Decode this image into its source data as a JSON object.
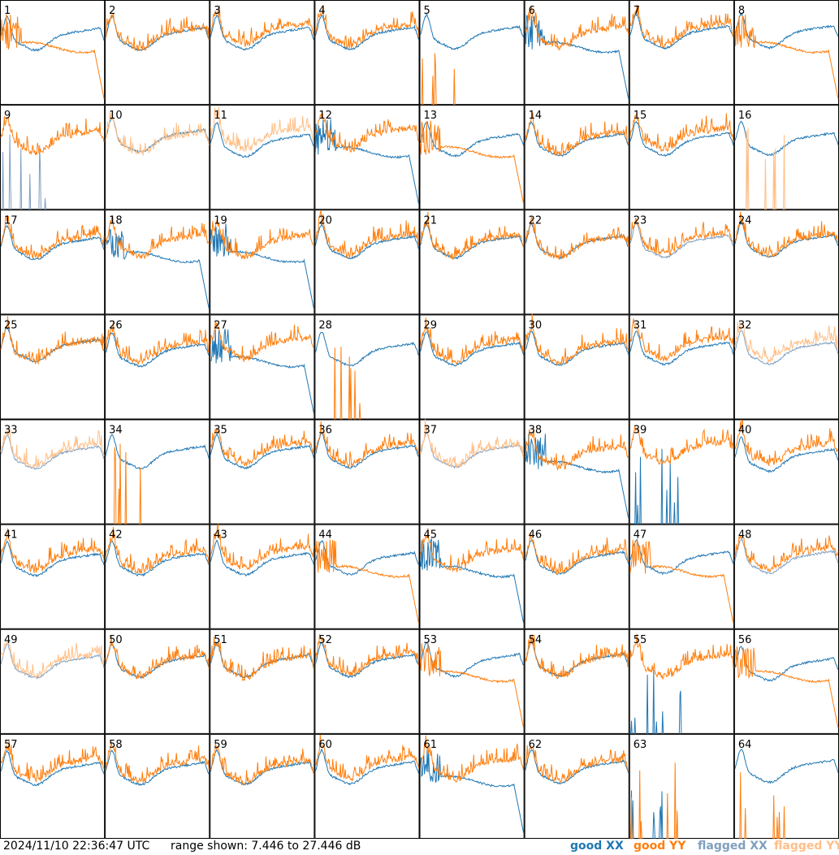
{
  "chart_data": {
    "type": "line",
    "panel_labels": [
      "1",
      "2",
      "3",
      "4",
      "5",
      "6",
      "7",
      "8",
      "9",
      "10",
      "11",
      "12",
      "13",
      "14",
      "15",
      "16",
      "17",
      "18",
      "19",
      "20",
      "21",
      "22",
      "23",
      "24",
      "25",
      "26",
      "27",
      "28",
      "29",
      "30",
      "31",
      "32",
      "33",
      "34",
      "35",
      "36",
      "37",
      "38",
      "39",
      "40",
      "41",
      "42",
      "43",
      "44",
      "45",
      "46",
      "47",
      "48",
      "49",
      "50",
      "51",
      "52",
      "53",
      "54",
      "55",
      "56",
      "57",
      "58",
      "59",
      "60",
      "61",
      "62",
      "63",
      "64"
    ],
    "grid": {
      "rows": 8,
      "cols": 8
    },
    "y_range_db": [
      7.446,
      27.446
    ],
    "colors": {
      "good_xx": "#1f77b4",
      "good_yy": "#ff7f0e",
      "flagged_xx": "#7f9fbf",
      "flagged_yy": "#ffbf87"
    },
    "series_types": [
      "good XX",
      "good YY",
      "flagged XX",
      "flagged YY"
    ],
    "panel_status": {
      "9": {
        "xx": "flagged",
        "yy": "good"
      },
      "10": {
        "xx": "good",
        "yy": "flagged"
      },
      "11": {
        "xx": "good",
        "yy": "flagged"
      },
      "16": {
        "xx": "good",
        "yy": "flagged"
      },
      "23": {
        "xx": "flagged",
        "yy": "good"
      },
      "32": {
        "xx": "flagged",
        "yy": "flagged"
      },
      "33": {
        "xx": "flagged",
        "yy": "flagged"
      },
      "37": {
        "xx": "flagged",
        "yy": "flagged"
      },
      "48": {
        "xx": "flagged",
        "yy": "good"
      },
      "49": {
        "xx": "flagged",
        "yy": "flagged"
      }
    }
  },
  "footer": {
    "timestamp": "2024/11/10 22:36:47 UTC",
    "range": "range shown: 7.446 to 27.446 dB",
    "legend": {
      "good_xx": "good XX",
      "good_yy": "good YY",
      "flagged_xx": "flagged XX",
      "flagged_yy": "flagged YY"
    }
  }
}
